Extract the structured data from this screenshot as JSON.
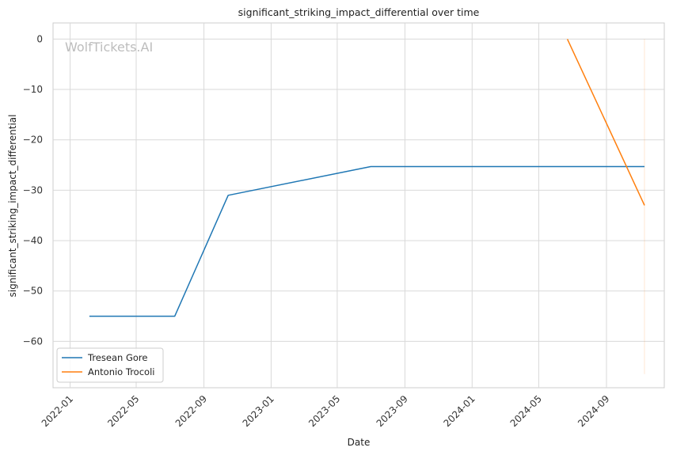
{
  "chart_data": {
    "type": "line",
    "title": "significant_striking_impact_differential over time",
    "xlabel": "Date",
    "ylabel": "significant_striking_impact_differential",
    "watermark": "WolfTickets.AI",
    "x_ticks": [
      "2022-01",
      "2022-05",
      "2022-09",
      "2023-01",
      "2023-05",
      "2023-09",
      "2024-01",
      "2024-05",
      "2024-09"
    ],
    "y_ticks": [
      0,
      -10,
      -20,
      -30,
      -40,
      -50,
      -60
    ],
    "y_tick_labels": [
      "0",
      "−10",
      "−20",
      "−30",
      "−40",
      "−50",
      "−60"
    ],
    "xlim": [
      "2021-12-01",
      "2024-12-15"
    ],
    "ylim": [
      -69.2,
      3.2
    ],
    "grid": true,
    "legend_position": "lower-left",
    "series": [
      {
        "name": "Tresean Gore",
        "color": "#1f77b4",
        "points": [
          {
            "x": "2022-02-05",
            "y": -55
          },
          {
            "x": "2022-07-10",
            "y": -55
          },
          {
            "x": "2022-10-15",
            "y": -31
          },
          {
            "x": "2023-07-01",
            "y": -25.3
          },
          {
            "x": "2024-11-09",
            "y": -25.3
          }
        ]
      },
      {
        "name": "Antonio Trocoli",
        "color": "#ff7f0e",
        "points": [
          {
            "x": "2024-06-22",
            "y": 0
          },
          {
            "x": "2024-11-09",
            "y": -33
          }
        ]
      }
    ],
    "extra_line": {
      "color": "#ff7f0e",
      "x": "2024-11-09",
      "y_from": 0,
      "y_to": -66.5
    }
  }
}
